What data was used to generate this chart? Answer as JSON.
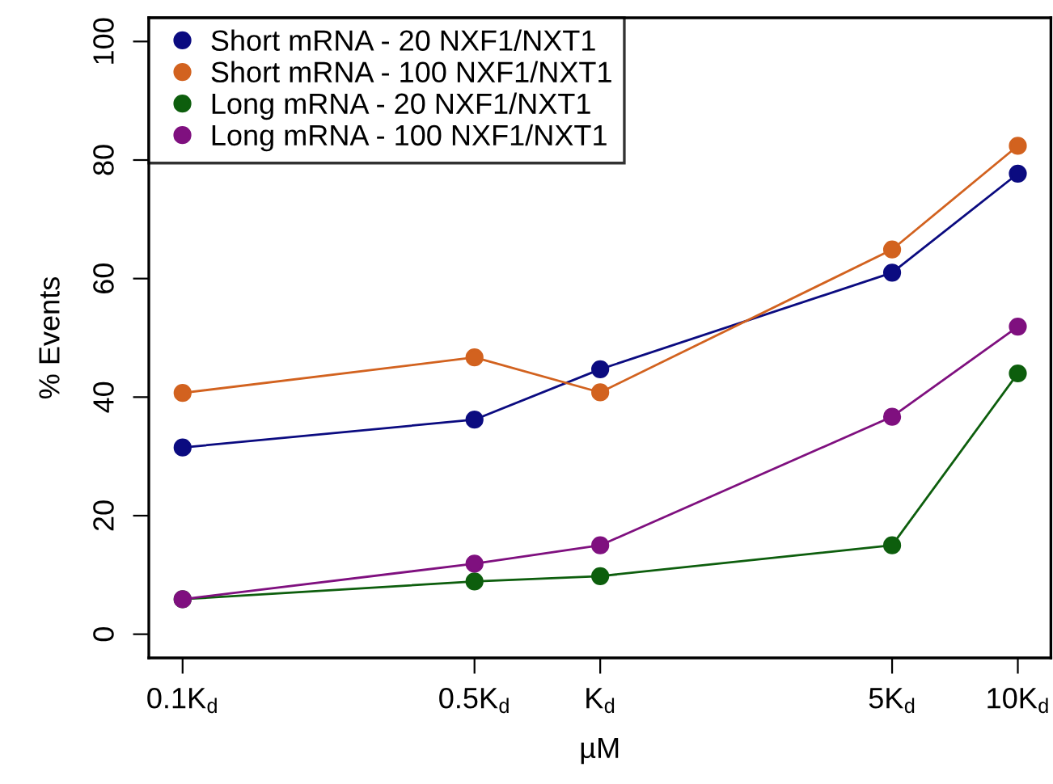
{
  "chart_data": {
    "type": "line",
    "xlabel": "µM",
    "ylabel": "% Events",
    "x": [
      0.1,
      0.5,
      1,
      5,
      10
    ],
    "series": [
      {
        "name": "Short mRNA - 20 NXF1/NXT1",
        "color": "#0b0b80",
        "values": [
          31.5,
          36.2,
          44.7,
          61.0,
          77.7
        ]
      },
      {
        "name": "Short mRNA - 100 NXF1/NXT1",
        "color": "#d2621f",
        "values": [
          40.7,
          46.7,
          40.8,
          64.9,
          82.4
        ]
      },
      {
        "name": "Long mRNA - 20 NXF1/NXT1",
        "color": "#0d5e0d",
        "values": [
          5.9,
          8.9,
          9.8,
          15.0,
          44.0
        ]
      },
      {
        "name": "Long mRNA - 100 NXF1/NXT1",
        "color": "#7f107f",
        "values": [
          5.9,
          11.9,
          15.0,
          36.7,
          51.9
        ]
      }
    ],
    "log": "x",
    "xlim": [
      0.083,
      12
    ],
    "xticks": [
      {
        "value": 0.1,
        "label": "0.1K$_{d}$"
      },
      {
        "value": 0.5,
        "label": "0.5K$_{d}$"
      },
      {
        "value": 1,
        "label": "K$_{d}$"
      },
      {
        "value": 5,
        "label": "5K$_{d}$"
      },
      {
        "value": 10,
        "label": "10K$_{d}$"
      }
    ],
    "ylim": [
      -4,
      104
    ],
    "yticks": [
      0,
      20,
      40,
      60,
      80,
      100
    ],
    "grid": false,
    "legend": "top left",
    "marker": "circle",
    "line_style": "solid"
  }
}
